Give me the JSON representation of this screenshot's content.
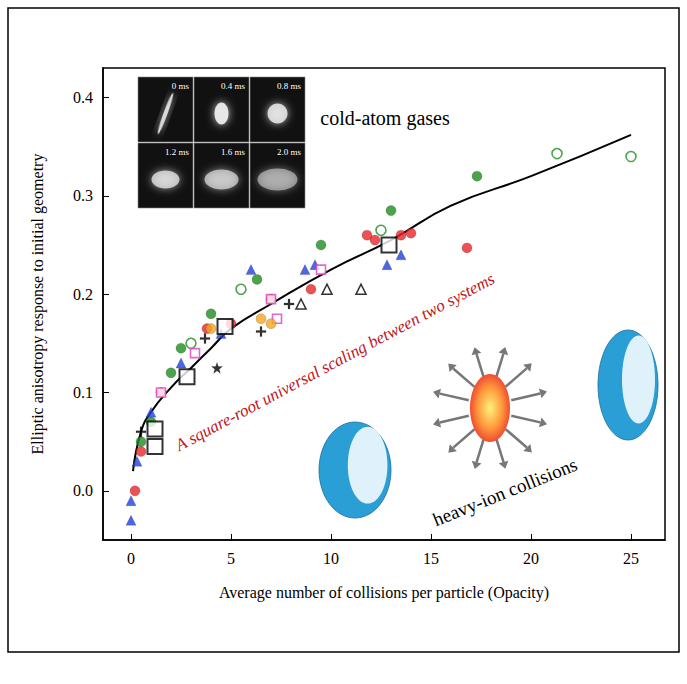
{
  "chart_data": {
    "type": "scatter",
    "x_label": "Average number of collisions per particle (Opacity)",
    "y_label": "Elliptic anisotropy response to initial geometry",
    "xlim": [
      -1.4,
      26.7
    ],
    "ylim": [
      -0.05,
      0.43
    ],
    "xticks": [
      0,
      5,
      10,
      15,
      20,
      25
    ],
    "yticks": [
      {
        "value": 0,
        "label": "0.0"
      },
      0.1,
      0.2,
      0.3,
      0.4
    ],
    "grid": false,
    "annotations": [
      "cold-atom gases",
      "A square-root universal scaling between two systems",
      "heavy-ion collisions"
    ],
    "inset_labels": [
      "0 ms",
      "0.4 ms",
      "0.8 ms",
      "1.2 ms",
      "1.6 ms",
      "2.0 ms"
    ],
    "series": [
      {
        "type": "line",
        "color": "#000000",
        "marker": "none",
        "line_style": "solid",
        "x": [
          0.1,
          0.5,
          1,
          2,
          3,
          4,
          5,
          7,
          10,
          13,
          16,
          20,
          25
        ],
        "values": [
          0.02,
          0.06,
          0.08,
          0.105,
          0.125,
          0.145,
          0.165,
          0.19,
          0.225,
          0.255,
          0.29,
          0.32,
          0.362
        ]
      },
      {
        "color": "#1e8c1e",
        "marker": "circle",
        "x": [
          0.5,
          1,
          2,
          2.5,
          4,
          6.3,
          9.5,
          13,
          17.3
        ],
        "values": [
          0.05,
          0.07,
          0.12,
          0.145,
          0.18,
          0.215,
          0.25,
          0.285,
          0.32
        ]
      },
      {
        "color": "#1e8c1e",
        "marker": "open_circle",
        "x": [
          3,
          5.5,
          12.5,
          21.3,
          25
        ],
        "values": [
          0.15,
          0.205,
          0.265,
          0.343,
          0.34
        ]
      },
      {
        "color": "#e8262b",
        "marker": "circle",
        "x": [
          0.2,
          0.5,
          1.5,
          3.8,
          5,
          7,
          9,
          11.8,
          12.2,
          13.5,
          14,
          16.8
        ],
        "values": [
          0.0,
          0.04,
          0.1,
          0.165,
          0.17,
          0.195,
          0.205,
          0.26,
          0.255,
          0.26,
          0.262,
          0.247
        ]
      },
      {
        "color": "#2040e0",
        "marker": "triangle",
        "x": [
          0,
          0,
          0.3,
          1,
          2.5,
          4.5,
          6,
          8.7,
          9.2,
          12.8,
          13.5
        ],
        "values": [
          -0.03,
          -0.01,
          0.03,
          0.08,
          0.13,
          0.16,
          0.225,
          0.225,
          0.23,
          0.23,
          0.24
        ]
      },
      {
        "color": "#e040c0",
        "marker": "open_square",
        "x": [
          1.5,
          3.2,
          7,
          7.3,
          9.5
        ],
        "values": [
          0.1,
          0.14,
          0.195,
          0.175,
          0.225
        ]
      },
      {
        "color": "#f5a623",
        "marker": "circle",
        "x": [
          4,
          6.5,
          7
        ],
        "values": [
          0.165,
          0.175,
          0.17
        ]
      },
      {
        "color": "#000000",
        "marker": "plus",
        "x": [
          0.5,
          3.7,
          6.5,
          7.9
        ],
        "values": [
          0.06,
          0.155,
          0.162,
          0.19
        ]
      },
      {
        "color": "#000000",
        "marker": "star",
        "x": [
          4.3
        ],
        "values": [
          0.125
        ]
      },
      {
        "color": "#000000",
        "marker": "open_triangle",
        "x": [
          8.5,
          9.8,
          11.5
        ],
        "values": [
          0.19,
          0.205,
          0.205
        ]
      },
      {
        "color": "#000000",
        "marker": "open_square",
        "x": [
          1.2,
          1.2,
          2.8,
          4.7,
          12.9
        ],
        "values": [
          0.045,
          0.063,
          0.116,
          0.167,
          0.25
        ]
      }
    ]
  }
}
